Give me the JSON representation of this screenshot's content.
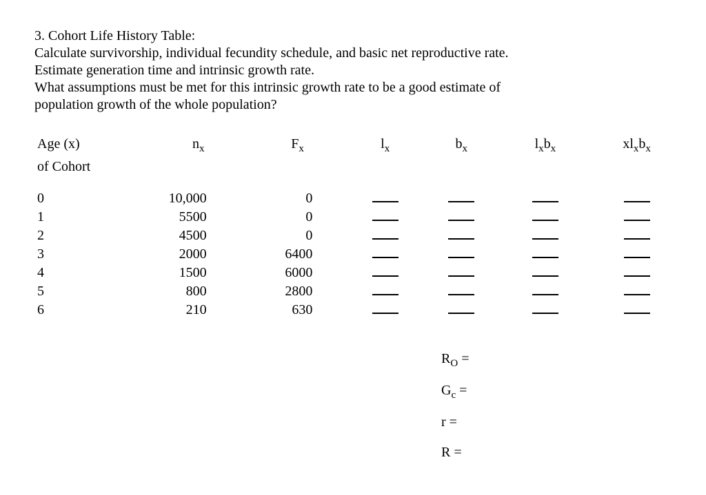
{
  "intro": {
    "line1": "3. Cohort Life History Table:",
    "line2": "Calculate survivorship, individual fecundity schedule, and basic net reproductive rate.",
    "line3": "Estimate generation time and intrinsic growth rate.",
    "line4": "What assumptions must be met for this intrinsic growth rate to be a good estimate of",
    "line5": "population growth of the whole population?"
  },
  "headers": {
    "age_top": "Age (x)",
    "age_bottom": "of Cohort",
    "nx_html": "n<span class=\"sub\">x</span>",
    "fx_html": "F<span class=\"sub\">x</span>",
    "lx_html": "l<span class=\"sub\">x</span>",
    "bx_html": "b<span class=\"sub\">x</span>",
    "lxbx_html": "l<span class=\"sub\">x</span>b<span class=\"sub\">x</span>",
    "xlxbx_html": "xl<span class=\"sub\">x</span>b<span class=\"sub\">x</span>"
  },
  "rows": [
    {
      "age": "0",
      "nx": "10,000",
      "fx": "0"
    },
    {
      "age": "1",
      "nx": "5500",
      "fx": "0"
    },
    {
      "age": "2",
      "nx": "4500",
      "fx": "0"
    },
    {
      "age": "3",
      "nx": "2000",
      "fx": "6400"
    },
    {
      "age": "4",
      "nx": "1500",
      "fx": "6000"
    },
    {
      "age": "5",
      "nx": "800",
      "fx": "2800"
    },
    {
      "age": "6",
      "nx": "210",
      "fx": "630"
    }
  ],
  "summary": {
    "r0_html": "R<span class=\"sub\">O</span> =",
    "gc_html": "G<span class=\"sub\">c</span> =",
    "r_html": "r =",
    "R_html": "R ="
  }
}
